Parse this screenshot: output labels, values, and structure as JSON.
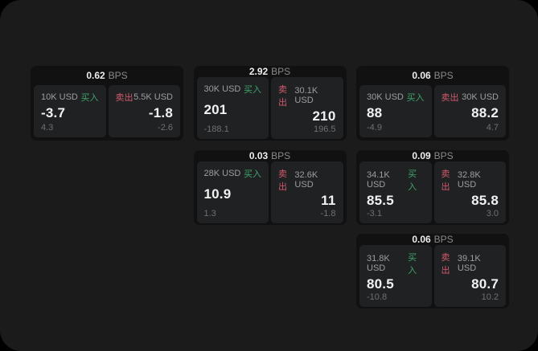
{
  "page": {
    "background": "#000000",
    "panel_background": "#1b1b1c"
  },
  "colors": {
    "buy_green": "#3fa56a",
    "sell_red": "#d05a6e",
    "price_white": "#f2f2f2",
    "size_label_gray": "#9e9e9e",
    "sub_gray": "#707070",
    "card_bg": "#111112",
    "tile_bg": "#202123"
  },
  "labels": {
    "buy": "买入",
    "sell": "卖出",
    "bps_suffix": "BPS"
  },
  "cards": [
    {
      "bps": "0.62",
      "buy": {
        "size": "10K USD",
        "price": "-3.7",
        "sub": "4.3"
      },
      "sell": {
        "size": "5.5K USD",
        "price": "-1.8",
        "sub": "-2.6"
      }
    },
    {
      "bps": "2.92",
      "buy": {
        "size": "30K USD",
        "price": "201",
        "sub": "-188.1"
      },
      "sell": {
        "size": "30.1K USD",
        "price": "210",
        "sub": "196.5"
      }
    },
    {
      "bps": "0.06",
      "buy": {
        "size": "30K USD",
        "price": "88",
        "sub": "-4.9"
      },
      "sell": {
        "size": "30K USD",
        "price": "88.2",
        "sub": "4.7"
      }
    },
    {
      "bps": "0.03",
      "buy": {
        "size": "28K USD",
        "price": "10.9",
        "sub": "1.3"
      },
      "sell": {
        "size": "32.6K USD",
        "price": "11",
        "sub": "-1.8"
      }
    },
    {
      "bps": "0.09",
      "buy": {
        "size": "34.1K USD",
        "price": "85.5",
        "sub": "-3.1"
      },
      "sell": {
        "size": "32.8K USD",
        "price": "85.8",
        "sub": "3.0"
      }
    },
    {
      "bps": "0.06",
      "buy": {
        "size": "31.8K USD",
        "price": "80.5",
        "sub": "-10.8"
      },
      "sell": {
        "size": "39.1K USD",
        "price": "80.7",
        "sub": "10.2"
      }
    }
  ]
}
